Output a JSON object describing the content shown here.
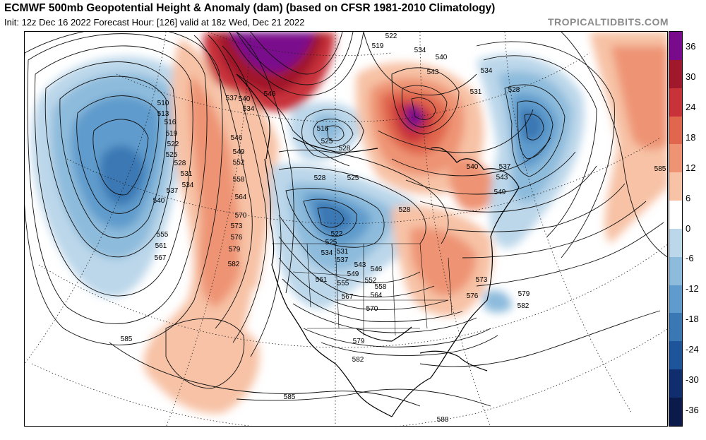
{
  "header": {
    "title": "ECMWF 500mb Geopotential Height & Anomaly (dam) (based on CFSR 1981-2010 Climatology)",
    "subtitle": "Init: 12z Dec 16 2022   Forecast Hour: [126]   valid at 18z Wed, Dec 21 2022",
    "brand": "TROPICALTIDBITS.COM"
  },
  "colorbar": {
    "labels": [
      "36",
      "30",
      "24",
      "18",
      "12",
      "6",
      "0",
      "-6",
      "-12",
      "-18",
      "-24",
      "-30",
      "-36"
    ],
    "colors": [
      "#7a0a8c",
      "#a0182c",
      "#c8333a",
      "#e0664e",
      "#ee9474",
      "#f7c2a6",
      "#ffffff",
      "#bcd7ea",
      "#8dbbdc",
      "#5f9bcc",
      "#3a78b4",
      "#1e559a",
      "#102e6e",
      "#0a1a4a"
    ]
  },
  "map": {
    "contour_labels": [
      {
        "id": "l510",
        "text": "510"
      },
      {
        "id": "l513",
        "text": "513"
      },
      {
        "id": "l516",
        "text": "516"
      },
      {
        "id": "l519",
        "text": "519"
      },
      {
        "id": "l522",
        "text": "522"
      },
      {
        "id": "l525",
        "text": "525"
      },
      {
        "id": "l528",
        "text": "528"
      },
      {
        "id": "l531",
        "text": "531"
      },
      {
        "id": "l534",
        "text": "534"
      },
      {
        "id": "l537",
        "text": "537"
      },
      {
        "id": "l540",
        "text": "540"
      },
      {
        "id": "l555",
        "text": "555"
      },
      {
        "id": "l561",
        "text": "561"
      },
      {
        "id": "l567",
        "text": "567"
      },
      {
        "id": "l582",
        "text": "582"
      },
      {
        "id": "l585a",
        "text": "585"
      },
      {
        "id": "l585b",
        "text": "585"
      },
      {
        "id": "l585c",
        "text": "585"
      },
      {
        "id": "l546",
        "text": "546"
      },
      {
        "id": "l549",
        "text": "549"
      },
      {
        "id": "l552",
        "text": "552"
      },
      {
        "id": "l558",
        "text": "558"
      },
      {
        "id": "l564",
        "text": "564"
      },
      {
        "id": "l570",
        "text": "570"
      },
      {
        "id": "l573",
        "text": "573"
      },
      {
        "id": "l576",
        "text": "576"
      },
      {
        "id": "l579",
        "text": "579"
      },
      {
        "id": "l516b",
        "text": "516"
      },
      {
        "id": "l525b",
        "text": "525"
      },
      {
        "id": "l528b",
        "text": "528"
      },
      {
        "id": "l528c",
        "text": "528"
      },
      {
        "id": "l525c",
        "text": "525"
      },
      {
        "id": "l528d",
        "text": "528"
      },
      {
        "id": "l522b",
        "text": "522"
      },
      {
        "id": "l525d",
        "text": "525"
      },
      {
        "id": "l531b",
        "text": "531"
      },
      {
        "id": "l534b",
        "text": "534"
      },
      {
        "id": "l537b",
        "text": "537"
      },
      {
        "id": "l543",
        "text": "543"
      },
      {
        "id": "l546b",
        "text": "546"
      },
      {
        "id": "l549b",
        "text": "549"
      },
      {
        "id": "l552b",
        "text": "552"
      },
      {
        "id": "l555b",
        "text": "555"
      },
      {
        "id": "l558b",
        "text": "558"
      },
      {
        "id": "l561b",
        "text": "561"
      },
      {
        "id": "l564b",
        "text": "564"
      },
      {
        "id": "l567b",
        "text": "567"
      },
      {
        "id": "l570b",
        "text": "570"
      },
      {
        "id": "l579b",
        "text": "579"
      },
      {
        "id": "l582b",
        "text": "582"
      },
      {
        "id": "l588",
        "text": "588"
      },
      {
        "id": "l573b",
        "text": "573"
      },
      {
        "id": "l576b",
        "text": "576"
      },
      {
        "id": "l579c",
        "text": "579"
      },
      {
        "id": "l582c",
        "text": "582"
      },
      {
        "id": "l519b",
        "text": "519"
      },
      {
        "id": "l522c",
        "text": "522"
      },
      {
        "id": "l534c",
        "text": "534"
      },
      {
        "id": "l540b",
        "text": "540"
      },
      {
        "id": "l543b",
        "text": "543"
      },
      {
        "id": "l531c",
        "text": "531"
      },
      {
        "id": "l534d",
        "text": "534"
      },
      {
        "id": "l528e",
        "text": "528"
      },
      {
        "id": "l537c",
        "text": "537"
      },
      {
        "id": "l540c",
        "text": "540"
      },
      {
        "id": "l543c",
        "text": "543"
      },
      {
        "id": "l549c",
        "text": "549"
      },
      {
        "id": "l540d",
        "text": "540"
      },
      {
        "id": "l546c",
        "text": "546"
      },
      {
        "id": "l534e",
        "text": "534"
      },
      {
        "id": "l537d",
        "text": "537"
      }
    ]
  }
}
